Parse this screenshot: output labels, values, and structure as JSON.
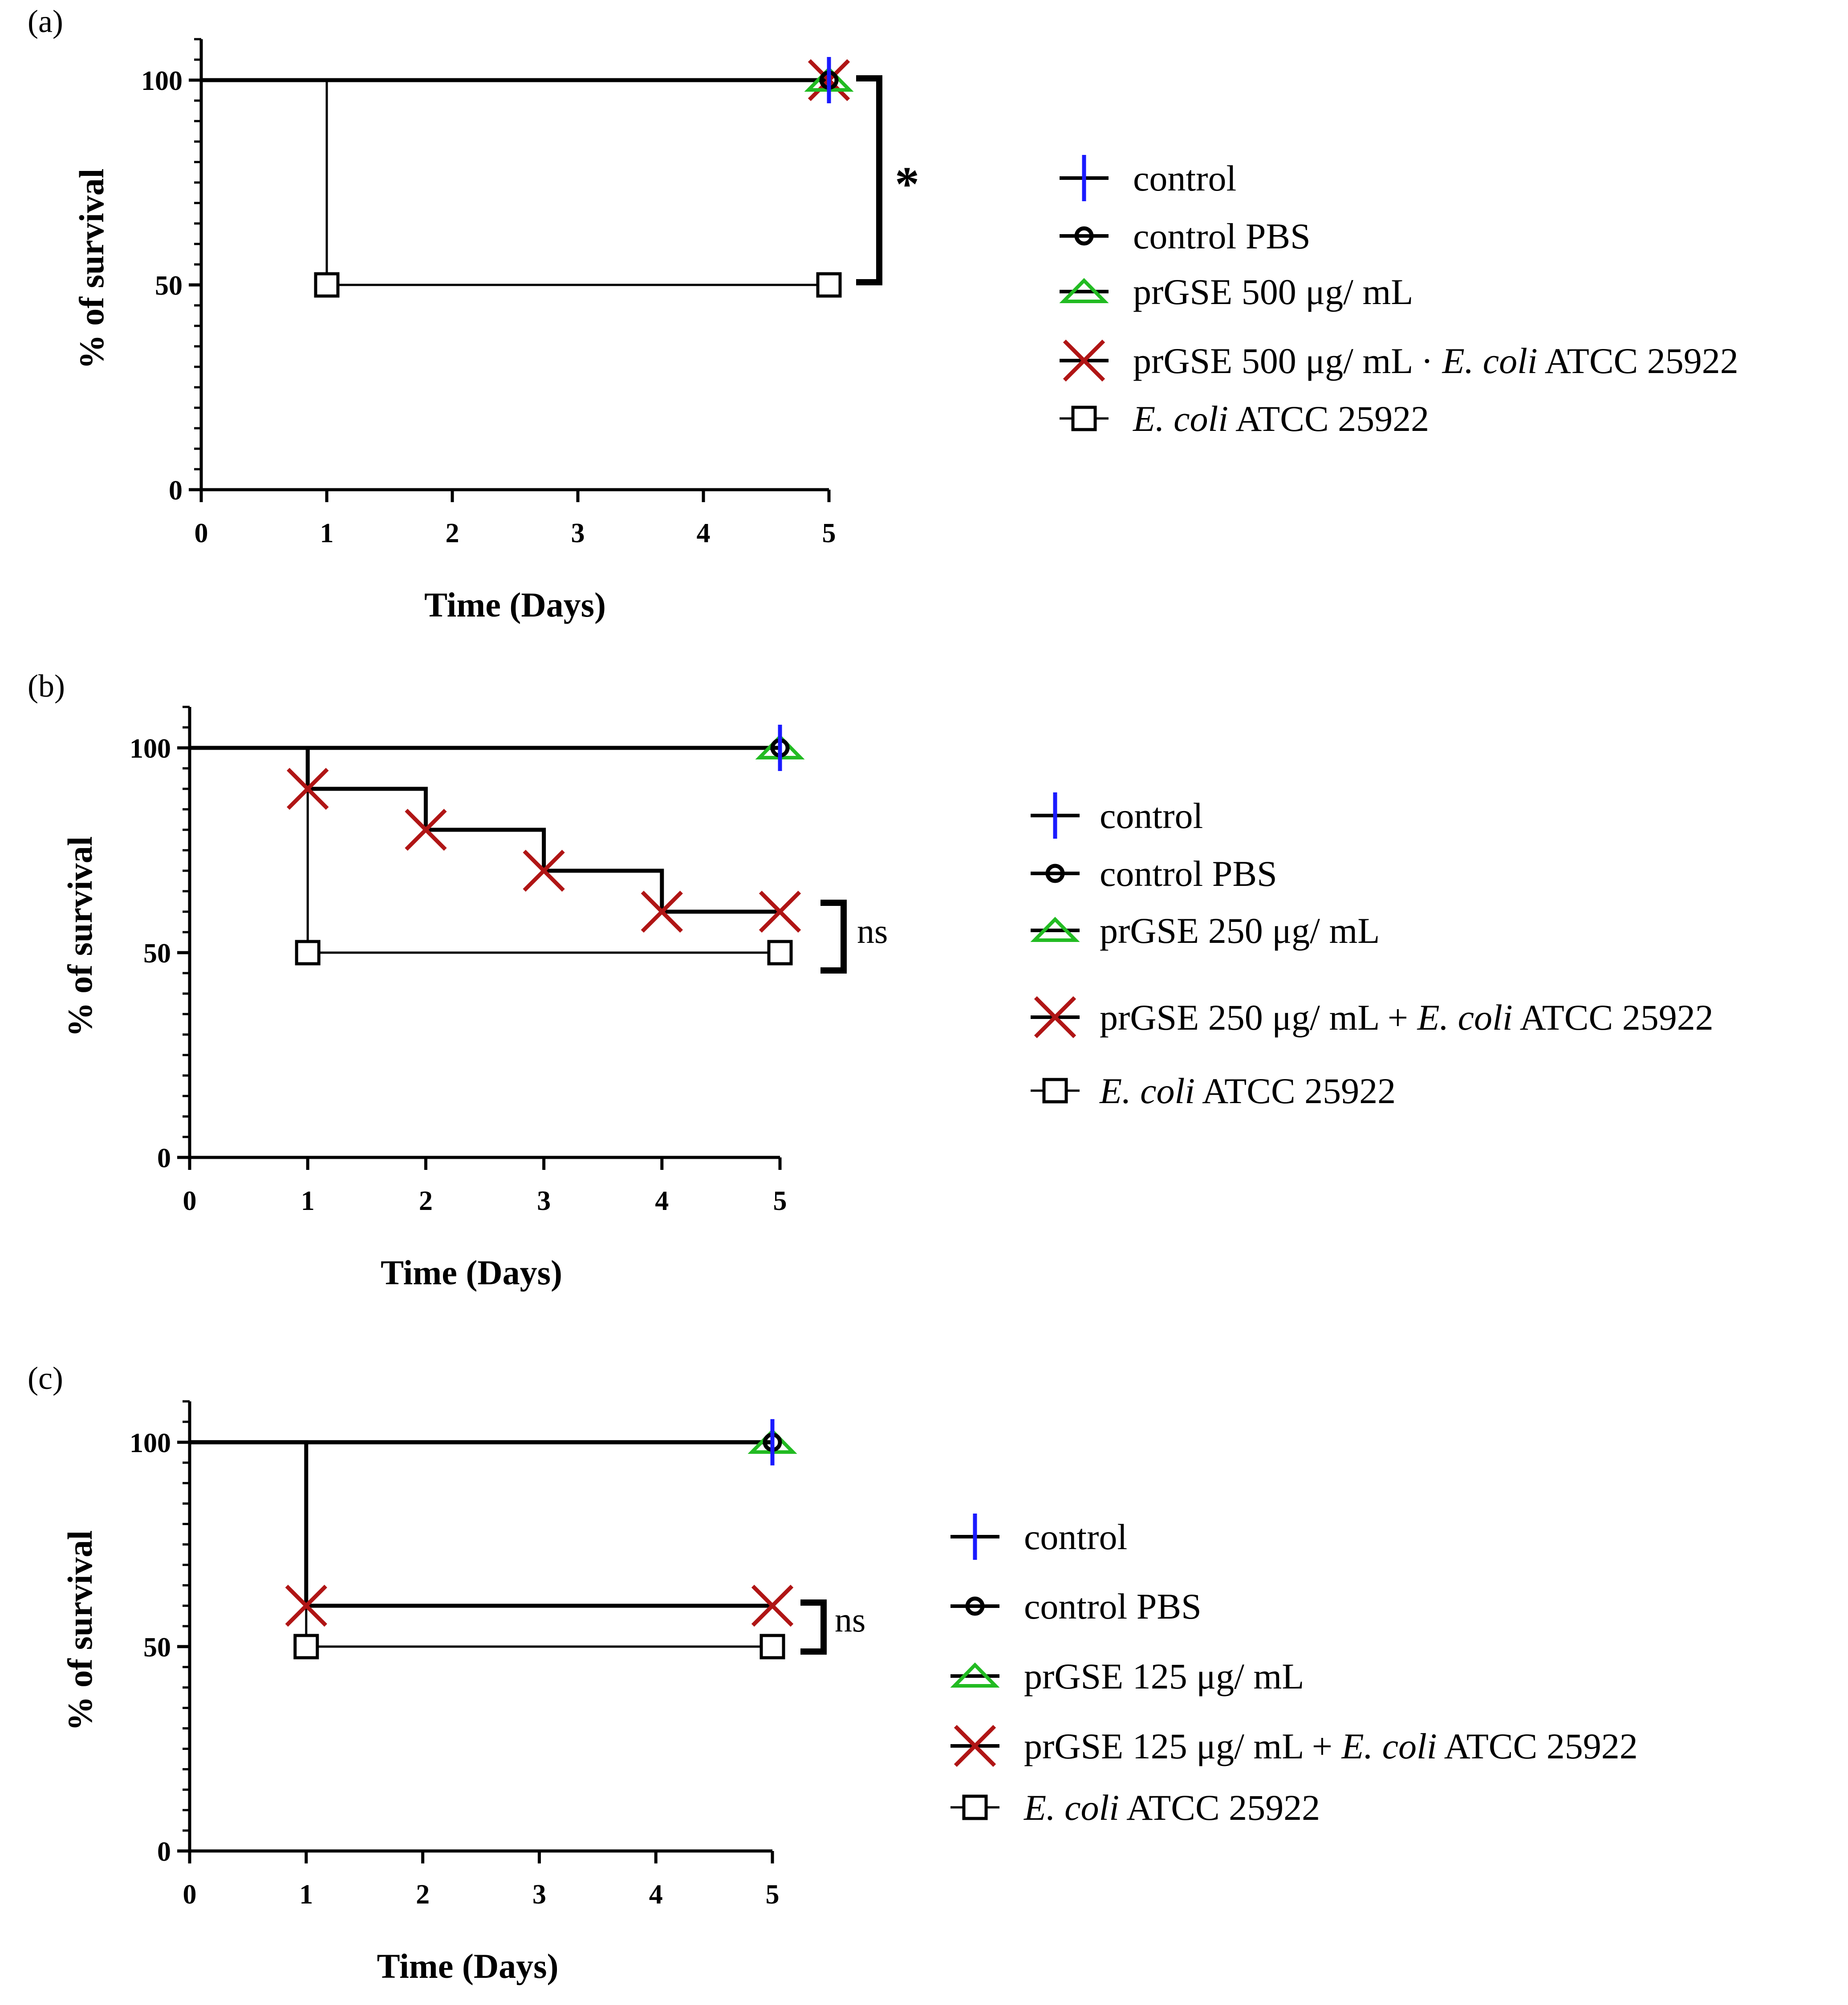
{
  "figure": {
    "panels": [
      {
        "label": "(a)",
        "chart_data": {
          "type": "line",
          "subtype": "kaplan-meier step survival",
          "title": "",
          "xlabel": "Time (Days)",
          "ylabel": "% of survival",
          "xlim": [
            0,
            5
          ],
          "ylim": [
            0,
            110
          ],
          "xticks": [
            "0",
            "1",
            "2",
            "3",
            "4",
            "5"
          ],
          "yticks": [
            "0",
            "50",
            "100"
          ],
          "grid": false,
          "legend_position": "right",
          "series": [
            {
              "name": "control",
              "marker": "plus",
              "color": "#1a1aff",
              "x": [
                0,
                5
              ],
              "y": [
                100,
                100
              ]
            },
            {
              "name": "control PBS",
              "marker": "circle",
              "color": "#000000",
              "x": [
                0,
                5
              ],
              "y": [
                100,
                100
              ]
            },
            {
              "name": "prGSE 500 μg/ mL",
              "marker": "triangle",
              "color": "#22bb22",
              "x": [
                0,
                5
              ],
              "y": [
                100,
                100
              ]
            },
            {
              "name": "prGSE 500 μg/ mL + E. coli ATCC 25922",
              "marker": "cross",
              "color": "#b01515",
              "x": [
                0,
                5
              ],
              "y": [
                100,
                100
              ]
            },
            {
              "name": "E. coli ATCC 25922",
              "marker": "square",
              "color": "#000000",
              "x": [
                0,
                1,
                5
              ],
              "y": [
                100,
                50,
                50
              ]
            }
          ],
          "significance": "*"
        },
        "legend": [
          {
            "marker": "plus",
            "color": "#1a1aff",
            "parts": [
              {
                "t": "control",
                "i": false
              }
            ]
          },
          {
            "marker": "circle",
            "color": "#000000",
            "parts": [
              {
                "t": "control PBS",
                "i": false
              }
            ]
          },
          {
            "marker": "triangle",
            "color": "#22bb22",
            "parts": [
              {
                "t": "prGSE 500 μg/ mL",
                "i": false
              }
            ]
          },
          {
            "marker": "cross",
            "color": "#b01515",
            "parts": [
              {
                "t": "prGSE 500 μg/ mL · ",
                "i": false
              },
              {
                "t": "E. coli",
                "i": true
              },
              {
                "t": " ATCC 25922",
                "i": false
              }
            ]
          },
          {
            "marker": "square",
            "color": "#000000",
            "parts": [
              {
                "t": "E. coli",
                "i": true
              },
              {
                "t": " ATCC 25922",
                "i": false
              }
            ]
          }
        ]
      },
      {
        "label": "(b)",
        "chart_data": {
          "type": "line",
          "subtype": "kaplan-meier step survival",
          "title": "",
          "xlabel": "Time (Days)",
          "ylabel": "% of survival",
          "xlim": [
            0,
            5
          ],
          "ylim": [
            0,
            110
          ],
          "xticks": [
            "0",
            "1",
            "2",
            "3",
            "4",
            "5"
          ],
          "yticks": [
            "0",
            "50",
            "100"
          ],
          "grid": false,
          "legend_position": "right",
          "series": [
            {
              "name": "control",
              "marker": "plus",
              "color": "#1a1aff",
              "x": [
                0,
                5
              ],
              "y": [
                100,
                100
              ]
            },
            {
              "name": "control PBS",
              "marker": "circle",
              "color": "#000000",
              "x": [
                0,
                5
              ],
              "y": [
                100,
                100
              ]
            },
            {
              "name": "prGSE 250 μg/ mL",
              "marker": "triangle",
              "color": "#22bb22",
              "x": [
                0,
                5
              ],
              "y": [
                100,
                100
              ]
            },
            {
              "name": "prGSE 250 μg/ mL + E. coli ATCC 25922",
              "marker": "cross",
              "color": "#b01515",
              "x": [
                0,
                1,
                2,
                3,
                4,
                5
              ],
              "y": [
                100,
                90,
                80,
                70,
                60,
                60
              ]
            },
            {
              "name": "E. coli ATCC 25922",
              "marker": "square",
              "color": "#000000",
              "x": [
                0,
                1,
                5
              ],
              "y": [
                100,
                50,
                50
              ]
            }
          ],
          "significance": "ns"
        },
        "legend": [
          {
            "marker": "plus",
            "color": "#1a1aff",
            "parts": [
              {
                "t": "control",
                "i": false
              }
            ]
          },
          {
            "marker": "circle",
            "color": "#000000",
            "parts": [
              {
                "t": "control PBS",
                "i": false
              }
            ]
          },
          {
            "marker": "triangle",
            "color": "#22bb22",
            "parts": [
              {
                "t": "prGSE 250 μg/ mL",
                "i": false
              }
            ]
          },
          {
            "marker": "cross",
            "color": "#b01515",
            "parts": [
              {
                "t": "prGSE 250 μg/ mL + ",
                "i": false
              },
              {
                "t": "E. coli",
                "i": true
              },
              {
                "t": " ATCC 25922",
                "i": false
              }
            ]
          },
          {
            "marker": "square",
            "color": "#000000",
            "parts": [
              {
                "t": "E. coli",
                "i": true
              },
              {
                "t": " ATCC 25922",
                "i": false
              }
            ]
          }
        ]
      },
      {
        "label": "(c)",
        "chart_data": {
          "type": "line",
          "subtype": "kaplan-meier step survival",
          "title": "",
          "xlabel": "Time (Days)",
          "ylabel": "% of survival",
          "xlim": [
            0,
            5
          ],
          "ylim": [
            0,
            110
          ],
          "xticks": [
            "0",
            "1",
            "2",
            "3",
            "4",
            "5"
          ],
          "yticks": [
            "0",
            "50",
            "100"
          ],
          "grid": false,
          "legend_position": "right",
          "series": [
            {
              "name": "control",
              "marker": "plus",
              "color": "#1a1aff",
              "x": [
                0,
                5
              ],
              "y": [
                100,
                100
              ]
            },
            {
              "name": "control PBS",
              "marker": "circle",
              "color": "#000000",
              "x": [
                0,
                5
              ],
              "y": [
                100,
                100
              ]
            },
            {
              "name": "prGSE 125 μg/ mL",
              "marker": "triangle",
              "color": "#22bb22",
              "x": [
                0,
                5
              ],
              "y": [
                100,
                100
              ]
            },
            {
              "name": "prGSE 125 μg/ mL + E. coli ATCC 25922",
              "marker": "cross",
              "color": "#b01515",
              "x": [
                0,
                1,
                5
              ],
              "y": [
                100,
                60,
                60
              ]
            },
            {
              "name": "E. coli ATCC 25922",
              "marker": "square",
              "color": "#000000",
              "x": [
                0,
                1,
                5
              ],
              "y": [
                100,
                50,
                50
              ]
            }
          ],
          "significance": "ns"
        },
        "legend": [
          {
            "marker": "plus",
            "color": "#1a1aff",
            "parts": [
              {
                "t": "control",
                "i": false
              }
            ]
          },
          {
            "marker": "circle",
            "color": "#000000",
            "parts": [
              {
                "t": "control PBS",
                "i": false
              }
            ]
          },
          {
            "marker": "triangle",
            "color": "#22bb22",
            "parts": [
              {
                "t": "prGSE 125 μg/ mL",
                "i": false
              }
            ]
          },
          {
            "marker": "cross",
            "color": "#b01515",
            "parts": [
              {
                "t": "prGSE 125 μg/ mL + ",
                "i": false
              },
              {
                "t": "E. coli",
                "i": true
              },
              {
                "t": " ATCC 25922",
                "i": false
              }
            ]
          },
          {
            "marker": "square",
            "color": "#000000",
            "parts": [
              {
                "t": "E. coli",
                "i": true
              },
              {
                "t": " ATCC 25922",
                "i": false
              }
            ]
          }
        ]
      }
    ]
  }
}
